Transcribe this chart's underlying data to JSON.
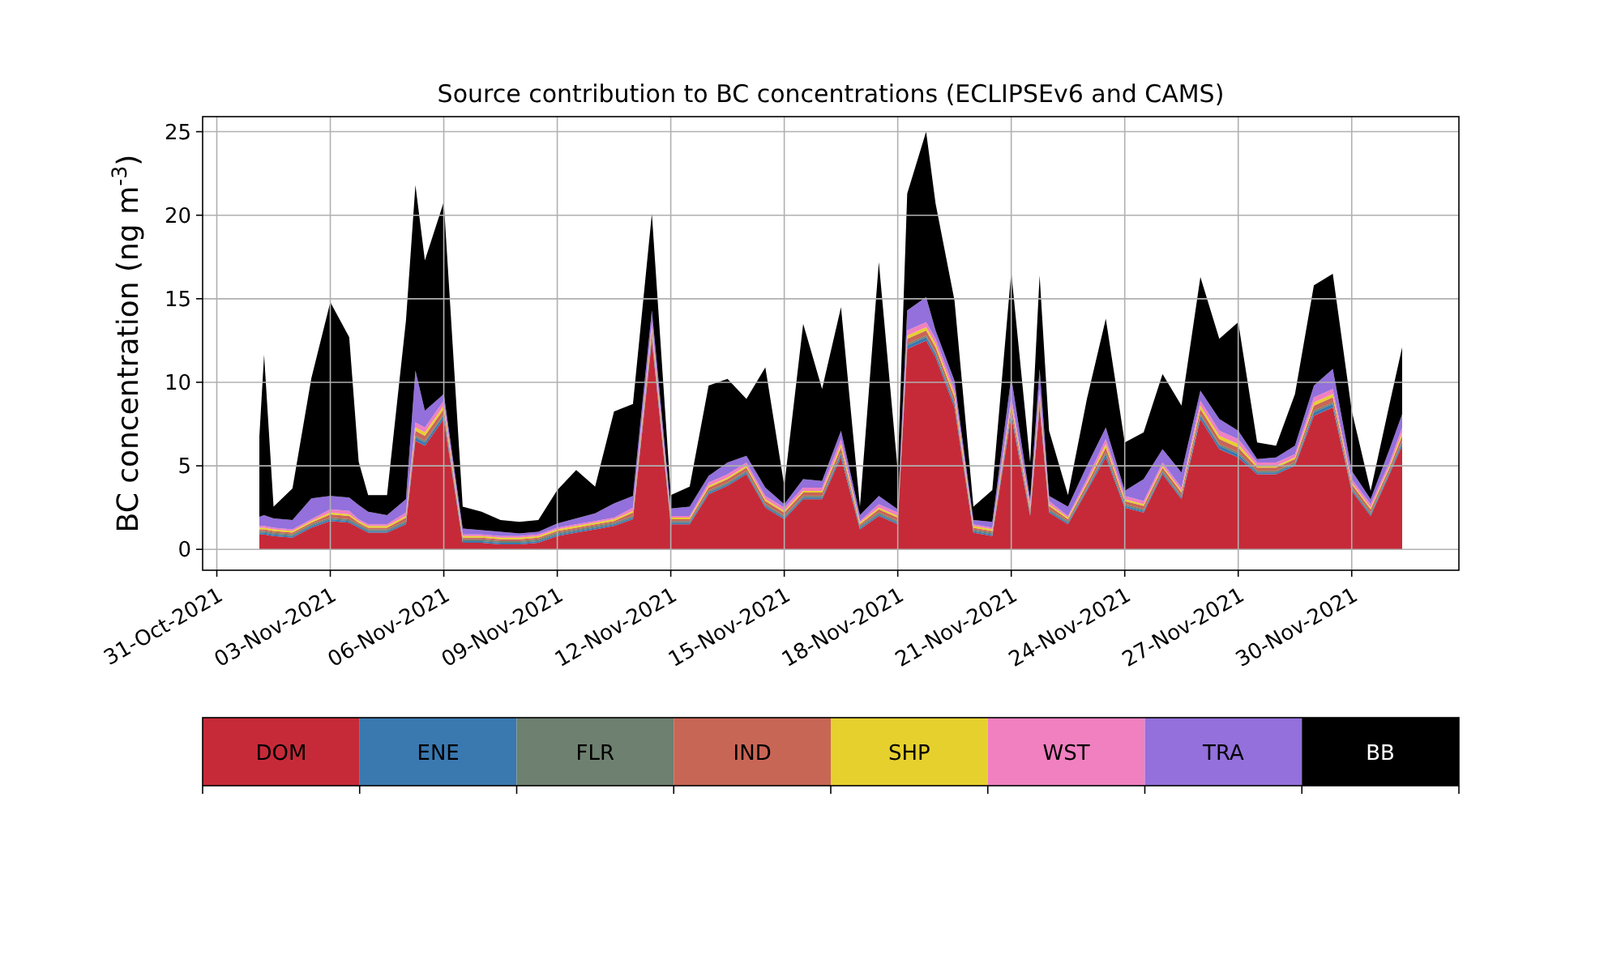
{
  "chart_data": {
    "type": "area",
    "stacked": true,
    "title": "Source contribution to BC concentrations (ECLIPSEv6 and CAMS)",
    "ylabel": "BC concentration (ng m$^{-3}$)",
    "x": [
      "2021-11-01T03:00",
      "2021-11-01T06:00",
      "2021-11-01T12:00",
      "2021-11-02T00:00",
      "2021-11-02T12:00",
      "2021-11-03T00:00",
      "2021-11-03T12:00",
      "2021-11-03T18:00",
      "2021-11-04T00:00",
      "2021-11-04T12:00",
      "2021-11-05T00:00",
      "2021-11-05T06:00",
      "2021-11-05T12:00",
      "2021-11-06T00:00",
      "2021-11-06T12:00",
      "2021-11-07T00:00",
      "2021-11-07T12:00",
      "2021-11-08T00:00",
      "2021-11-08T12:00",
      "2021-11-09T00:00",
      "2021-11-09T12:00",
      "2021-11-10T00:00",
      "2021-11-10T12:00",
      "2021-11-11T00:00",
      "2021-11-11T12:00",
      "2021-11-12T00:00",
      "2021-11-12T12:00",
      "2021-11-13T00:00",
      "2021-11-13T12:00",
      "2021-11-14T00:00",
      "2021-11-14T12:00",
      "2021-11-15T00:00",
      "2021-11-15T12:00",
      "2021-11-16T00:00",
      "2021-11-16T12:00",
      "2021-11-17T00:00",
      "2021-11-17T12:00",
      "2021-11-18T00:00",
      "2021-11-18T06:00",
      "2021-11-18T18:00",
      "2021-11-19T00:00",
      "2021-11-19T12:00",
      "2021-11-20T00:00",
      "2021-11-20T12:00",
      "2021-11-21T00:00",
      "2021-11-21T12:00",
      "2021-11-21T18:00",
      "2021-11-22T00:00",
      "2021-11-22T12:00",
      "2021-11-23T00:00",
      "2021-11-23T12:00",
      "2021-11-24T00:00",
      "2021-11-24T12:00",
      "2021-11-25T00:00",
      "2021-11-25T12:00",
      "2021-11-26T00:00",
      "2021-11-26T12:00",
      "2021-11-27T00:00",
      "2021-11-27T12:00",
      "2021-11-28T00:00",
      "2021-11-28T12:00",
      "2021-11-29T00:00",
      "2021-11-29T12:00",
      "2021-11-30T00:00",
      "2021-11-30T12:00",
      "2021-12-01T00:00",
      "2021-12-01T08:00"
    ],
    "series": [
      {
        "name": "DOM",
        "color": "#c62a38",
        "values": [
          0.9,
          0.9,
          0.8,
          0.7,
          1.3,
          1.7,
          1.6,
          1.3,
          1.0,
          1.0,
          1.5,
          6.5,
          6.2,
          7.8,
          0.4,
          0.4,
          0.3,
          0.3,
          0.4,
          0.8,
          1.0,
          1.2,
          1.4,
          1.8,
          12.5,
          1.5,
          1.5,
          3.3,
          3.8,
          4.5,
          2.5,
          1.8,
          3.0,
          3.0,
          5.5,
          1.2,
          2.0,
          1.5,
          12,
          12.5,
          11.5,
          8.5,
          1.0,
          0.8,
          8.0,
          2.0,
          8.5,
          2.2,
          1.5,
          3.5,
          5.5,
          2.5,
          2.2,
          4.5,
          3.0,
          7.8,
          6.0,
          5.5,
          4.5,
          4.5,
          5.0,
          8.0,
          8.5,
          3.5,
          2.0,
          4.5,
          6.2
        ]
      },
      {
        "name": "ENE",
        "color": "#3a78b0",
        "values": [
          0.1,
          0.1,
          0.1,
          0.1,
          0.1,
          0.1,
          0.1,
          0.1,
          0.1,
          0.1,
          0.1,
          0.2,
          0.2,
          0.2,
          0.1,
          0.1,
          0.1,
          0.1,
          0.1,
          0.1,
          0.1,
          0.1,
          0.1,
          0.1,
          0.2,
          0.1,
          0.1,
          0.1,
          0.1,
          0.1,
          0.1,
          0.1,
          0.1,
          0.1,
          0.2,
          0.1,
          0.1,
          0.1,
          0.2,
          0.2,
          0.2,
          0.2,
          0.1,
          0.1,
          0.2,
          0.1,
          0.2,
          0.1,
          0.1,
          0.1,
          0.2,
          0.1,
          0.1,
          0.1,
          0.1,
          0.2,
          0.2,
          0.2,
          0.1,
          0.1,
          0.1,
          0.2,
          0.2,
          0.1,
          0.1,
          0.1,
          0.2
        ]
      },
      {
        "name": "FLR",
        "color": "#6e8070",
        "values": [
          0.1,
          0.1,
          0.1,
          0.1,
          0.1,
          0.1,
          0.1,
          0.1,
          0.1,
          0.1,
          0.1,
          0.1,
          0.1,
          0.1,
          0.1,
          0.1,
          0.1,
          0.1,
          0.1,
          0.1,
          0.1,
          0.1,
          0.1,
          0.1,
          0.1,
          0.1,
          0.1,
          0.1,
          0.1,
          0.1,
          0.1,
          0.1,
          0.1,
          0.1,
          0.1,
          0.1,
          0.1,
          0.1,
          0.1,
          0.1,
          0.1,
          0.1,
          0.1,
          0.1,
          0.1,
          0.1,
          0.1,
          0.1,
          0.1,
          0.1,
          0.1,
          0.1,
          0.1,
          0.1,
          0.1,
          0.1,
          0.1,
          0.1,
          0.1,
          0.1,
          0.1,
          0.1,
          0.1,
          0.1,
          0.1,
          0.1,
          0.1
        ]
      },
      {
        "name": "IND",
        "color": "#c86656",
        "values": [
          0.1,
          0.1,
          0.1,
          0.1,
          0.1,
          0.2,
          0.2,
          0.1,
          0.1,
          0.1,
          0.2,
          0.3,
          0.3,
          0.3,
          0.1,
          0.1,
          0.1,
          0.1,
          0.1,
          0.1,
          0.1,
          0.1,
          0.1,
          0.2,
          0.3,
          0.1,
          0.1,
          0.2,
          0.2,
          0.2,
          0.2,
          0.2,
          0.2,
          0.2,
          0.3,
          0.1,
          0.2,
          0.2,
          0.3,
          0.3,
          0.3,
          0.3,
          0.1,
          0.1,
          0.3,
          0.2,
          0.3,
          0.2,
          0.1,
          0.2,
          0.3,
          0.2,
          0.2,
          0.2,
          0.2,
          0.3,
          0.3,
          0.3,
          0.2,
          0.2,
          0.2,
          0.3,
          0.3,
          0.2,
          0.2,
          0.2,
          0.3
        ]
      },
      {
        "name": "SHP",
        "color": "#e6d02e",
        "values": [
          0.1,
          0.1,
          0.1,
          0.1,
          0.1,
          0.1,
          0.1,
          0.1,
          0.1,
          0.1,
          0.1,
          0.2,
          0.2,
          0.2,
          0.1,
          0.1,
          0.1,
          0.1,
          0.1,
          0.1,
          0.1,
          0.1,
          0.1,
          0.1,
          0.2,
          0.1,
          0.1,
          0.1,
          0.1,
          0.1,
          0.1,
          0.1,
          0.1,
          0.1,
          0.2,
          0.1,
          0.1,
          0.1,
          0.2,
          0.2,
          0.2,
          0.2,
          0.1,
          0.1,
          0.2,
          0.1,
          0.2,
          0.1,
          0.1,
          0.1,
          0.2,
          0.1,
          0.1,
          0.1,
          0.1,
          0.2,
          0.2,
          0.2,
          0.1,
          0.1,
          0.1,
          0.2,
          0.2,
          0.1,
          0.1,
          0.1,
          0.2
        ]
      },
      {
        "name": "WST",
        "color": "#f080c0",
        "values": [
          0.1,
          0.1,
          0.1,
          0.1,
          0.1,
          0.2,
          0.2,
          0.1,
          0.1,
          0.1,
          0.2,
          0.3,
          0.3,
          0.3,
          0.1,
          0.1,
          0.1,
          0.1,
          0.1,
          0.1,
          0.1,
          0.1,
          0.1,
          0.2,
          0.3,
          0.1,
          0.1,
          0.2,
          0.2,
          0.2,
          0.2,
          0.2,
          0.2,
          0.2,
          0.3,
          0.1,
          0.2,
          0.2,
          0.3,
          0.3,
          0.3,
          0.3,
          0.1,
          0.1,
          0.3,
          0.2,
          0.3,
          0.2,
          0.1,
          0.2,
          0.3,
          0.2,
          0.2,
          0.2,
          0.2,
          0.3,
          0.3,
          0.3,
          0.2,
          0.2,
          0.2,
          0.3,
          0.3,
          0.2,
          0.2,
          0.2,
          0.3
        ]
      },
      {
        "name": "TRA",
        "color": "#9370db",
        "values": [
          0.55,
          0.65,
          0.55,
          0.55,
          1.25,
          0.8,
          0.8,
          0.85,
          0.75,
          0.55,
          0.8,
          3.1,
          1.0,
          0.4,
          0.35,
          0.25,
          0.25,
          0.15,
          0.15,
          0.25,
          0.35,
          0.45,
          0.85,
          0.7,
          0.7,
          0.45,
          0.55,
          0.4,
          0.7,
          0.4,
          0.5,
          0.2,
          0.5,
          0.4,
          0.5,
          0.35,
          0.5,
          0.2,
          1.2,
          1.5,
          0.5,
          0.5,
          0.25,
          0.35,
          1.2,
          0.3,
          1.2,
          0.3,
          0.55,
          0.8,
          0.7,
          0.3,
          1.3,
          0.8,
          0.9,
          0.6,
          0.7,
          0.5,
          0.2,
          0.3,
          0.5,
          0.7,
          1.2,
          0.5,
          0.3,
          0.8,
          0.8
        ]
      },
      {
        "name": "BB",
        "color": "#000000",
        "values": [
          4.8,
          9.6,
          0.7,
          1.9,
          7.2,
          11.6,
          9.6,
          2.6,
          1.0,
          1.2,
          10.7,
          11.1,
          9.0,
          11.5,
          1.3,
          1.1,
          0.7,
          0.7,
          0.7,
          2.0,
          2.9,
          1.6,
          5.5,
          5.5,
          5.8,
          0.8,
          1.2,
          5.4,
          5.0,
          3.4,
          7.2,
          1.1,
          9.3,
          5.5,
          7.4,
          0.5,
          14.0,
          2.3,
          7.0,
          9.9,
          7.6,
          4.8,
          0.8,
          1.9,
          6.3,
          2.2,
          5.6,
          3.9,
          0.7,
          4.0,
          6.5,
          2.9,
          2.8,
          4.5,
          4.0,
          6.8,
          4.8,
          6.5,
          1.0,
          0.7,
          3.1,
          6.0,
          5.7,
          3.6,
          0.5,
          2.7,
          4.0
        ]
      }
    ],
    "xlim": [
      "2021-10-30T15:00",
      "2021-12-02T20:00"
    ],
    "xticks": [
      {
        "value": "2021-10-31",
        "label": "31-Oct-2021"
      },
      {
        "value": "2021-11-03",
        "label": "03-Nov-2021"
      },
      {
        "value": "2021-11-06",
        "label": "06-Nov-2021"
      },
      {
        "value": "2021-11-09",
        "label": "09-Nov-2021"
      },
      {
        "value": "2021-11-12",
        "label": "12-Nov-2021"
      },
      {
        "value": "2021-11-15",
        "label": "15-Nov-2021"
      },
      {
        "value": "2021-11-18",
        "label": "18-Nov-2021"
      },
      {
        "value": "2021-11-21",
        "label": "21-Nov-2021"
      },
      {
        "value": "2021-11-24",
        "label": "24-Nov-2021"
      },
      {
        "value": "2021-11-27",
        "label": "27-Nov-2021"
      },
      {
        "value": "2021-11-30",
        "label": "30-Nov-2021"
      }
    ],
    "ylim": [
      -1.25,
      25.9
    ],
    "yticks": [
      0,
      5,
      10,
      15,
      20,
      25
    ],
    "grid": true,
    "legend": "bottom"
  }
}
